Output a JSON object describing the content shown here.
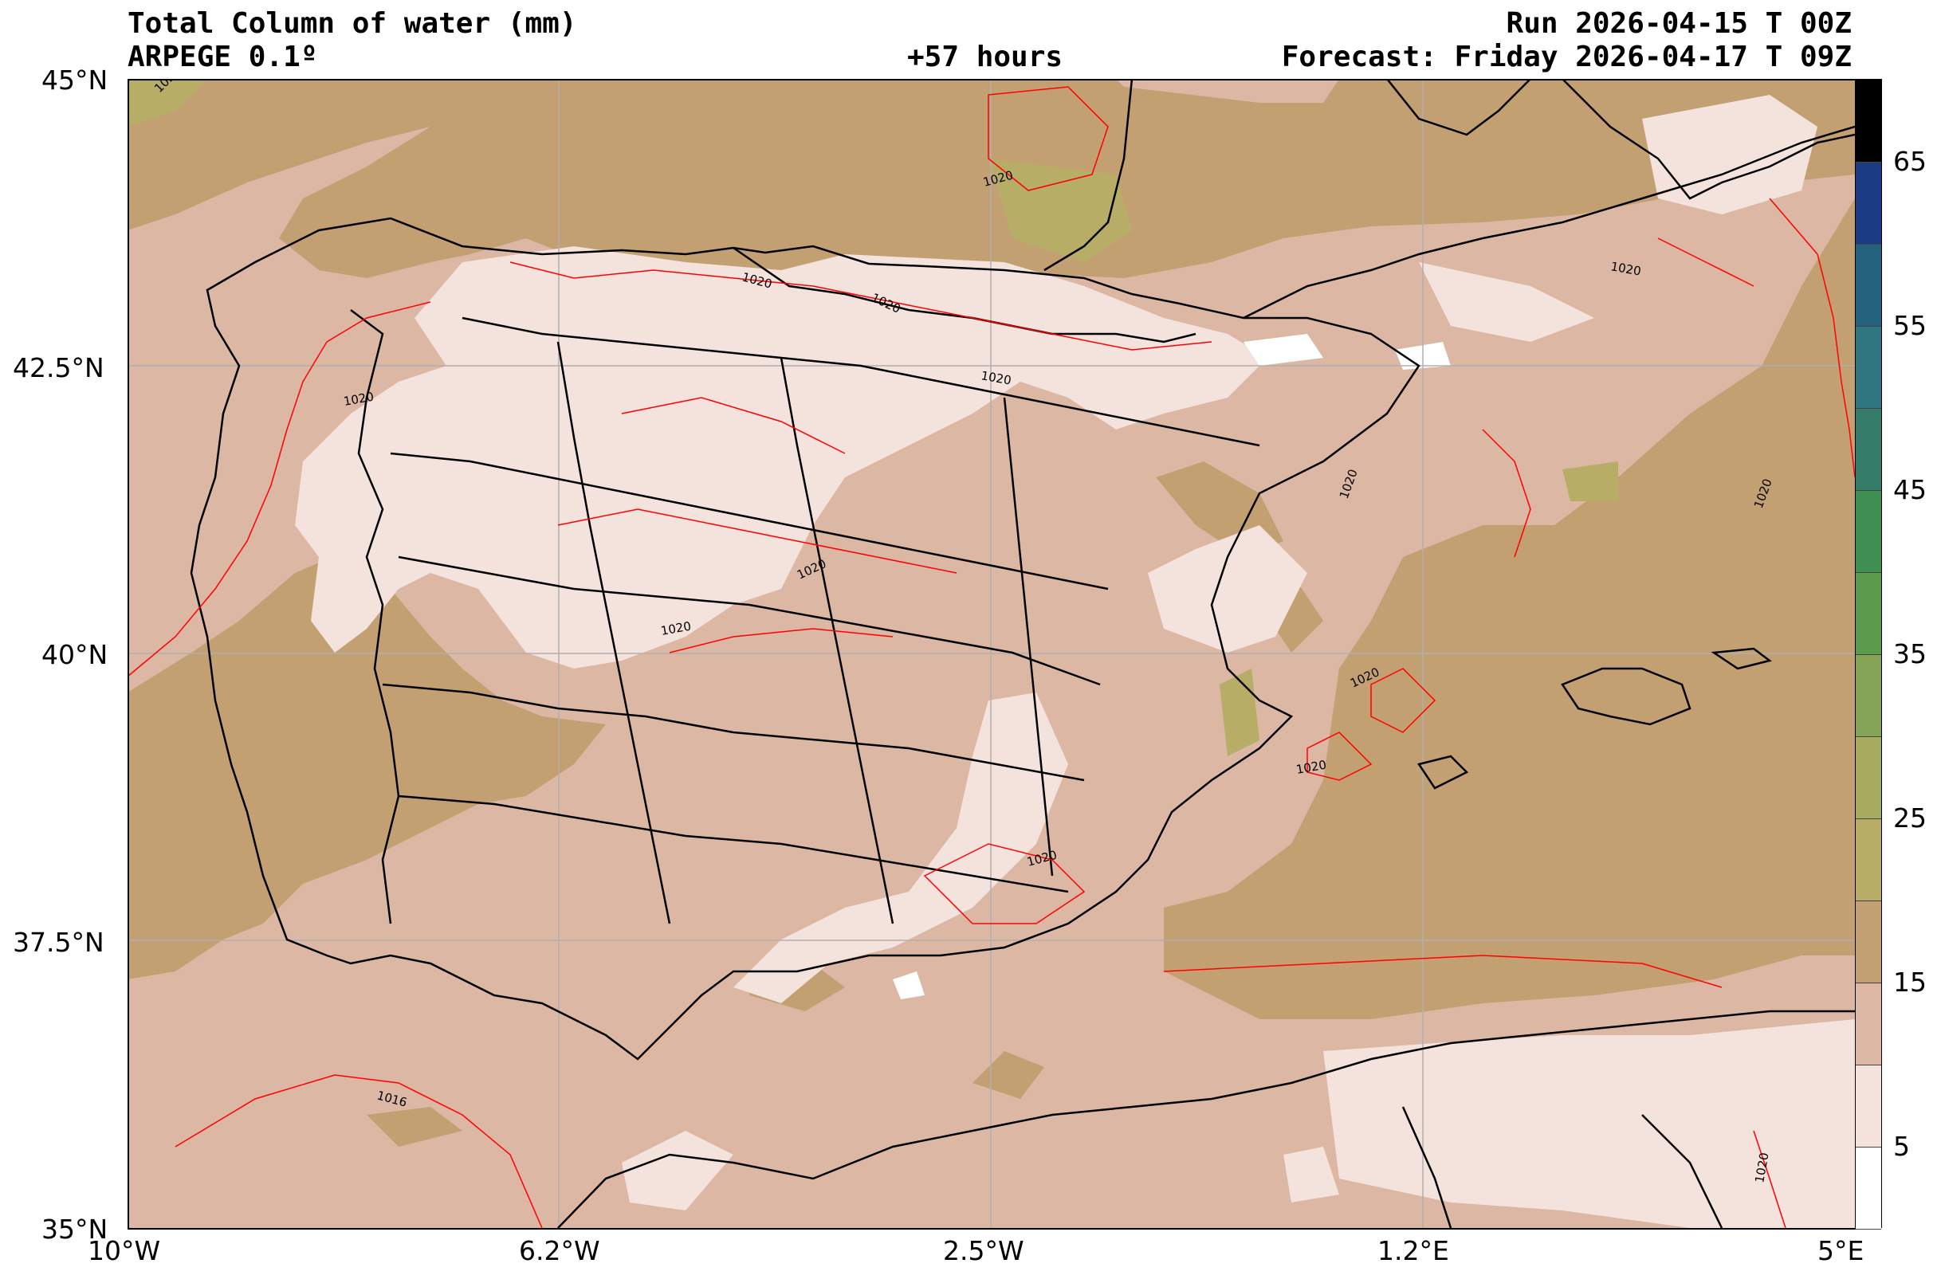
{
  "header": {
    "title": "Total Column of water (mm)",
    "model": "ARPEGE 0.1º",
    "lead_time": "+57 hours",
    "run": "Run 2026-04-15 T 00Z",
    "forecast": "Forecast: Friday 2026-04-17 T 09Z"
  },
  "map": {
    "variable": "Total Column of water (mm)",
    "lon_range": [
      -10,
      5
    ],
    "lat_range": [
      35,
      45
    ],
    "x_ticks": [
      "10°W",
      "6.2°W",
      "2.5°W",
      "1.2°E",
      "5°E"
    ],
    "y_ticks": [
      "45°N",
      "42.5°N",
      "40°N",
      "37.5°N",
      "35°N"
    ],
    "grid": true,
    "isobar_labels": [
      "1020",
      "1020",
      "1020",
      "1020",
      "1020",
      "1020",
      "1020",
      "1020",
      "1020",
      "1020",
      "1020",
      "1020",
      "1020",
      "1020",
      "1016",
      "1020"
    ],
    "colors": {
      "class_0_5": "#ffffff",
      "class_5_10": "#f4e2dc",
      "class_10_15": "#dcb7a4",
      "class_15_20": "#c3a071",
      "class_20_25": "#b7ad67",
      "isobar": "#ff0000",
      "borders": "#000000",
      "gridlines": "#b0b0b0"
    }
  },
  "colorbar": {
    "tick_labels": [
      "65",
      "55",
      "45",
      "35",
      "25",
      "15",
      "5"
    ],
    "segments": [
      {
        "from": 0,
        "to": 5,
        "color": "#ffffff"
      },
      {
        "from": 5,
        "to": 10,
        "color": "#f4e2dc"
      },
      {
        "from": 10,
        "to": 15,
        "color": "#dcb7a4"
      },
      {
        "from": 15,
        "to": 20,
        "color": "#c3a071"
      },
      {
        "from": 20,
        "to": 25,
        "color": "#b7ad67"
      },
      {
        "from": 25,
        "to": 30,
        "color": "#a6ab5f"
      },
      {
        "from": 30,
        "to": 35,
        "color": "#86a457"
      },
      {
        "from": 35,
        "to": 40,
        "color": "#5c9a4c"
      },
      {
        "from": 40,
        "to": 45,
        "color": "#3f8f52"
      },
      {
        "from": 45,
        "to": 50,
        "color": "#357d6a"
      },
      {
        "from": 50,
        "to": 55,
        "color": "#2f7680"
      },
      {
        "from": 55,
        "to": 60,
        "color": "#23617c"
      },
      {
        "from": 60,
        "to": 65,
        "color": "#1b3b84"
      },
      {
        "from": 65,
        "to": 70,
        "color": "#000000"
      }
    ]
  }
}
